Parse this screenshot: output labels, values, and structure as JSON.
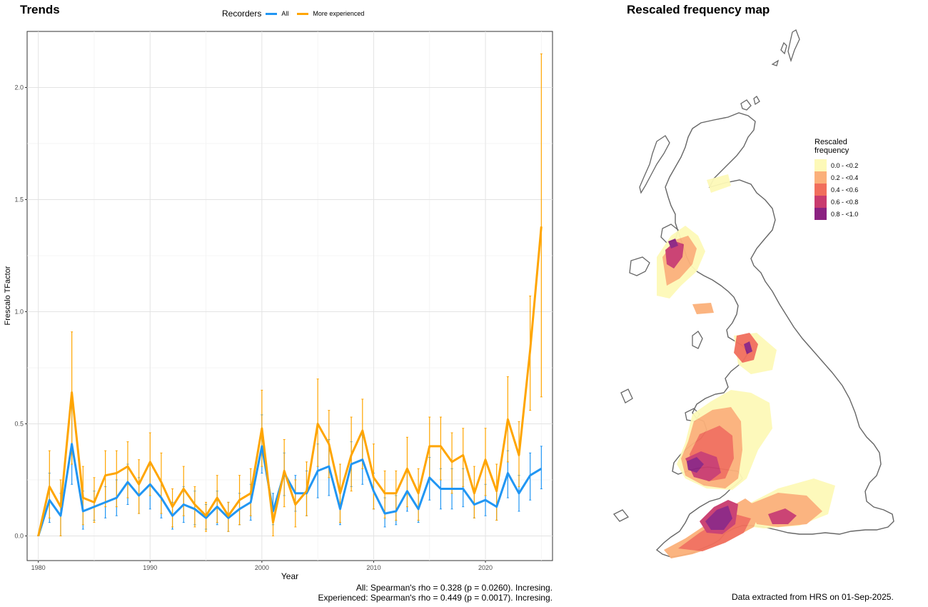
{
  "trends_title": "Trends",
  "map_title": "Rescaled frequency map",
  "legend": {
    "title": "Recorders",
    "all_label": "All",
    "experienced_label": "More experienced"
  },
  "stats": {
    "all": "All: Spearman's rho = 0.328 (p = 0.0260). Incresing.",
    "experienced": "Experienced: Spearman's rho = 0.449 (p = 0.0017). Incresing."
  },
  "footnote": "Data extracted from HRS on 01-Sep-2025.",
  "map_legend": {
    "title_line1": "Rescaled",
    "title_line2": "frequency",
    "bins": [
      {
        "label": "0.0 - <0.2",
        "color": "#fdf9b8"
      },
      {
        "label": "0.2 - <0.4",
        "color": "#fbb07a"
      },
      {
        "label": "0.4 - <0.6",
        "color": "#f16e5c"
      },
      {
        "label": "0.6 - <0.8",
        "color": "#c93b6e"
      },
      {
        "label": "0.8 - <1.0",
        "color": "#8b2181"
      }
    ]
  },
  "chart_data": {
    "type": "line",
    "xlabel": "Year",
    "ylabel": "Frescalo TFactor",
    "xlim": [
      1979,
      2026
    ],
    "ylim": [
      -0.11,
      2.25
    ],
    "xticks": [
      1980,
      1990,
      2000,
      2010,
      2020
    ],
    "yticks": [
      0.0,
      0.5,
      1.0,
      1.5,
      2.0
    ],
    "ytick_labels": [
      "0.0",
      "0.5",
      "1.0",
      "1.5",
      "2.0"
    ],
    "grid": true,
    "x": [
      1980,
      1981,
      1982,
      1983,
      1984,
      1985,
      1986,
      1987,
      1988,
      1989,
      1990,
      1991,
      1992,
      1993,
      1994,
      1995,
      1996,
      1997,
      1998,
      1999,
      2000,
      2001,
      2002,
      2003,
      2004,
      2005,
      2006,
      2007,
      2008,
      2009,
      2010,
      2011,
      2012,
      2013,
      2014,
      2015,
      2016,
      2017,
      2018,
      2019,
      2020,
      2021,
      2022,
      2023,
      2024,
      2025
    ],
    "series": [
      {
        "name": "All",
        "color": "#2196f3",
        "values": [
          0.0,
          0.16,
          0.09,
          0.41,
          0.11,
          0.13,
          0.15,
          0.17,
          0.24,
          0.18,
          0.23,
          0.17,
          0.09,
          0.14,
          0.12,
          0.08,
          0.13,
          0.08,
          0.12,
          0.15,
          0.4,
          0.11,
          0.28,
          0.19,
          0.19,
          0.29,
          0.31,
          0.12,
          0.32,
          0.34,
          0.2,
          0.1,
          0.11,
          0.2,
          0.12,
          0.26,
          0.21,
          0.21,
          0.21,
          0.14,
          0.16,
          0.13,
          0.28,
          0.19,
          0.27,
          0.3
        ],
        "lower": [
          0.0,
          0.06,
          0.0,
          0.23,
          0.03,
          0.07,
          0.08,
          0.09,
          0.14,
          0.1,
          0.12,
          0.08,
          0.03,
          0.06,
          0.05,
          0.03,
          0.05,
          0.02,
          0.05,
          0.07,
          0.28,
          0.05,
          0.18,
          0.11,
          0.09,
          0.17,
          0.18,
          0.05,
          0.22,
          0.23,
          0.12,
          0.04,
          0.05,
          0.11,
          0.06,
          0.16,
          0.12,
          0.12,
          0.13,
          0.08,
          0.09,
          0.07,
          0.17,
          0.11,
          0.16,
          0.21
        ],
        "upper": [
          0.0,
          0.28,
          0.19,
          0.6,
          0.2,
          0.2,
          0.22,
          0.25,
          0.32,
          0.26,
          0.32,
          0.24,
          0.15,
          0.22,
          0.2,
          0.14,
          0.2,
          0.15,
          0.19,
          0.23,
          0.54,
          0.19,
          0.37,
          0.27,
          0.29,
          0.41,
          0.43,
          0.2,
          0.42,
          0.45,
          0.28,
          0.17,
          0.18,
          0.29,
          0.19,
          0.35,
          0.3,
          0.3,
          0.3,
          0.21,
          0.23,
          0.2,
          0.38,
          0.27,
          0.37,
          0.4
        ]
      },
      {
        "name": "More experienced",
        "color": "#ffa500",
        "values": [
          0.0,
          0.22,
          0.13,
          0.64,
          0.17,
          0.15,
          0.27,
          0.28,
          0.31,
          0.23,
          0.33,
          0.24,
          0.13,
          0.21,
          0.14,
          0.09,
          0.17,
          0.09,
          0.16,
          0.19,
          0.48,
          0.06,
          0.29,
          0.14,
          0.2,
          0.5,
          0.41,
          0.19,
          0.36,
          0.47,
          0.26,
          0.19,
          0.19,
          0.3,
          0.19,
          0.4,
          0.4,
          0.33,
          0.36,
          0.19,
          0.34,
          0.2,
          0.52,
          0.36,
          0.83,
          1.38
        ],
        "lower": [
          0.0,
          0.08,
          0.0,
          0.32,
          0.05,
          0.06,
          0.13,
          0.13,
          0.17,
          0.1,
          0.18,
          0.1,
          0.04,
          0.09,
          0.04,
          0.02,
          0.06,
          0.02,
          0.05,
          0.09,
          0.31,
          0.0,
          0.13,
          0.04,
          0.09,
          0.31,
          0.26,
          0.06,
          0.2,
          0.3,
          0.12,
          0.08,
          0.07,
          0.13,
          0.07,
          0.25,
          0.25,
          0.19,
          0.22,
          0.08,
          0.18,
          0.07,
          0.33,
          0.22,
          0.56,
          0.62
        ],
        "upper": [
          0.0,
          0.38,
          0.25,
          0.91,
          0.31,
          0.26,
          0.38,
          0.38,
          0.42,
          0.34,
          0.46,
          0.37,
          0.21,
          0.31,
          0.22,
          0.15,
          0.27,
          0.15,
          0.27,
          0.3,
          0.65,
          0.13,
          0.43,
          0.25,
          0.33,
          0.7,
          0.56,
          0.32,
          0.53,
          0.61,
          0.41,
          0.29,
          0.29,
          0.44,
          0.3,
          0.53,
          0.53,
          0.46,
          0.48,
          0.31,
          0.48,
          0.32,
          0.71,
          0.51,
          1.07,
          2.15
        ]
      }
    ]
  }
}
